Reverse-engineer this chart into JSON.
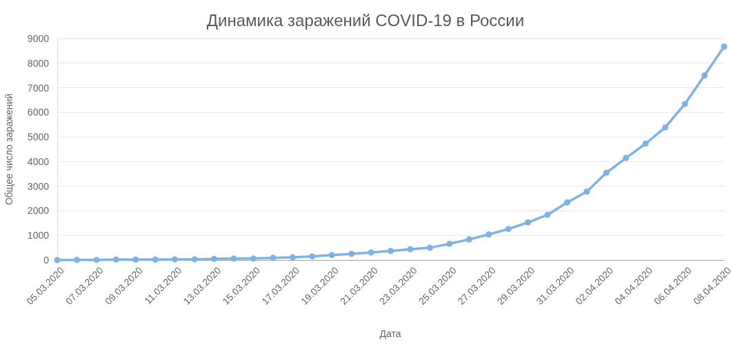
{
  "chart_data": {
    "type": "line",
    "title": "Динамика заражений COVID-19 в России",
    "xlabel": "Дата",
    "ylabel": "Общее число заражений",
    "categories": [
      "05.03.2020",
      null,
      "07.03.2020",
      null,
      "09.03.2020",
      null,
      "11.03.2020",
      null,
      "13.03.2020",
      null,
      "15.03.2020",
      null,
      "17.03.2020",
      null,
      "19.03.2020",
      null,
      "21.03.2020",
      null,
      "23.03.2020",
      null,
      "25.03.2020",
      null,
      "27.03.2020",
      null,
      "29.03.2020",
      null,
      "31.03.2020",
      null,
      "02.04.2020",
      null,
      "04.04.2020",
      null,
      "06.04.2020",
      null,
      "08.04.2020"
    ],
    "series": [
      {
        "color": "#7eb2e4",
        "values": [
          0,
          10,
          10,
          20,
          20,
          20,
          30,
          30,
          50,
          60,
          60,
          90,
          110,
          150,
          200,
          250,
          310,
          370,
          440,
          500,
          660,
          840,
          1040,
          1260,
          1530,
          1840,
          2340,
          2780,
          3550,
          4150,
          4730,
          5390,
          6340,
          7500,
          8670
        ]
      }
    ],
    "ylim": [
      0,
      9000
    ],
    "yticks": [
      0,
      1000,
      2000,
      3000,
      4000,
      5000,
      6000,
      7000,
      8000,
      9000
    ],
    "grid": "y",
    "marker": "circle",
    "line_style": "solid"
  }
}
